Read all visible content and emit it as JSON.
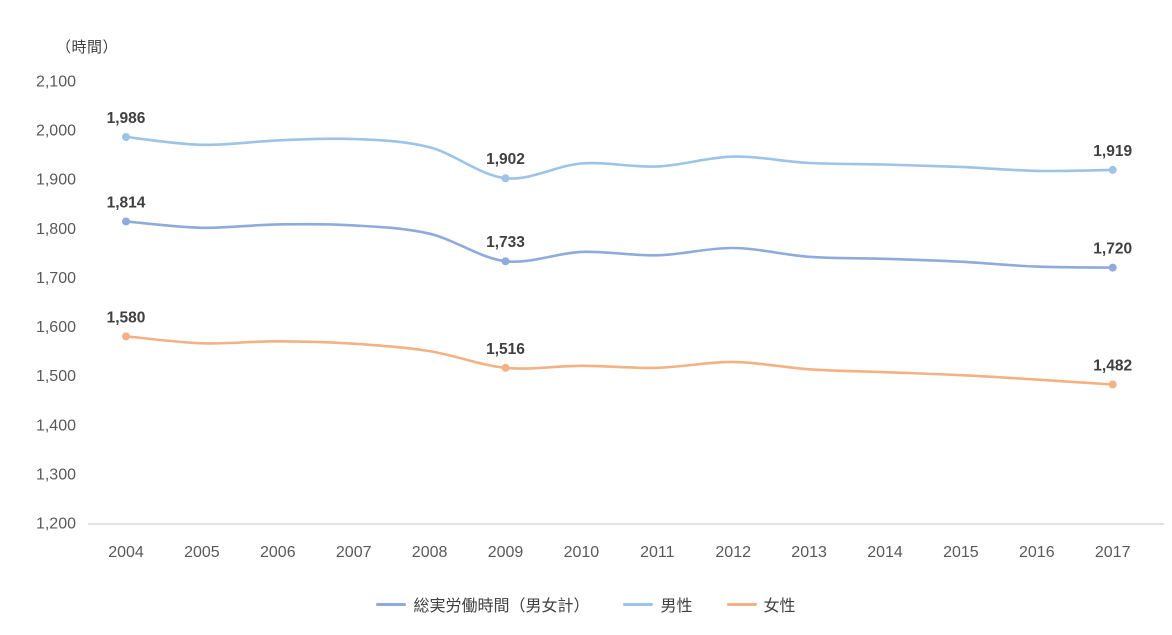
{
  "chart_data": {
    "type": "line",
    "title": "",
    "ylabel": "（時間）",
    "xlabel": "",
    "ylim": [
      1200,
      2100
    ],
    "ytick_step": 100,
    "ytick_labels": [
      "2,100",
      "2,000",
      "1,900",
      "1,800",
      "1,700",
      "1,600",
      "1,500",
      "1,400",
      "1,300",
      "1,200"
    ],
    "grid": false,
    "legend_position": "bottom",
    "categories": [
      "2004",
      "2005",
      "2006",
      "2007",
      "2008",
      "2009",
      "2010",
      "2011",
      "2012",
      "2013",
      "2014",
      "2015",
      "2016",
      "2017"
    ],
    "labeled_years": [
      "2004",
      "2009",
      "2017"
    ],
    "series": [
      {
        "name": "総実労働時間（男女計）",
        "color": "#8FAADC",
        "values": [
          1814,
          1801,
          1808,
          1806,
          1789,
          1733,
          1752,
          1745,
          1760,
          1742,
          1738,
          1732,
          1722,
          1720
        ],
        "point_labels": {
          "2004": "1,814",
          "2009": "1,733",
          "2017": "1,720"
        }
      },
      {
        "name": "男性",
        "color": "#9DC3E6",
        "values": [
          1986,
          1970,
          1979,
          1982,
          1965,
          1902,
          1932,
          1926,
          1946,
          1933,
          1930,
          1925,
          1917,
          1919
        ],
        "point_labels": {
          "2004": "1,986",
          "2009": "1,902",
          "2017": "1,919"
        }
      },
      {
        "name": "女性",
        "color": "#F4B183",
        "values": [
          1580,
          1566,
          1570,
          1565,
          1550,
          1516,
          1520,
          1516,
          1528,
          1513,
          1507,
          1501,
          1492,
          1482
        ],
        "point_labels": {
          "2004": "1,580",
          "2009": "1,516",
          "2017": "1,482"
        }
      }
    ],
    "axis_line_color": "#D9D9D9"
  }
}
